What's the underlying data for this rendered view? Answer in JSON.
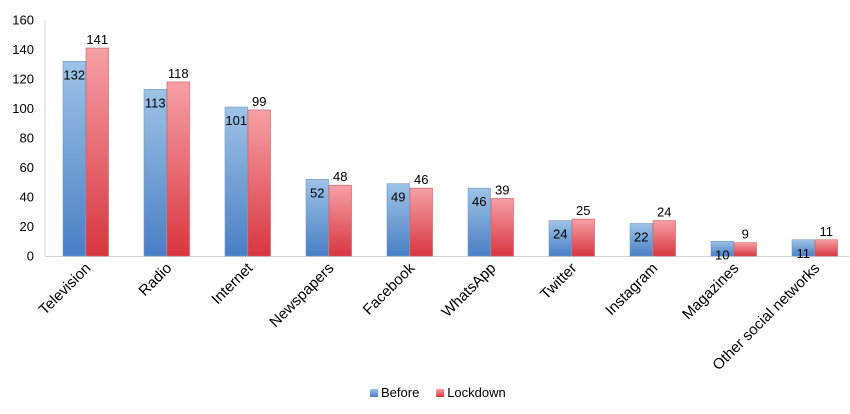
{
  "chart_data": {
    "type": "bar",
    "categories": [
      "Television",
      "Radio",
      "Internet",
      "Newspapers",
      "Facebook",
      "WhatsApp",
      "Twitter",
      "Instagram",
      "Magazines",
      "Other social networks"
    ],
    "series": [
      {
        "name": "Before",
        "values": [
          132,
          113,
          101,
          52,
          49,
          46,
          24,
          22,
          10,
          11
        ],
        "color_top": "#9dc3e6",
        "color_bottom": "#4a7fc5"
      },
      {
        "name": "Lockdown",
        "values": [
          141,
          118,
          99,
          48,
          46,
          39,
          25,
          24,
          9,
          11
        ],
        "color_top": "#f6a0a6",
        "color_bottom": "#d8363f"
      }
    ],
    "ylim": [
      0,
      160
    ],
    "yticks": [
      0,
      20,
      40,
      60,
      80,
      100,
      120,
      140,
      160
    ],
    "grid": false,
    "legend": "bottom",
    "xlabel": "",
    "ylabel": "",
    "title": ""
  }
}
